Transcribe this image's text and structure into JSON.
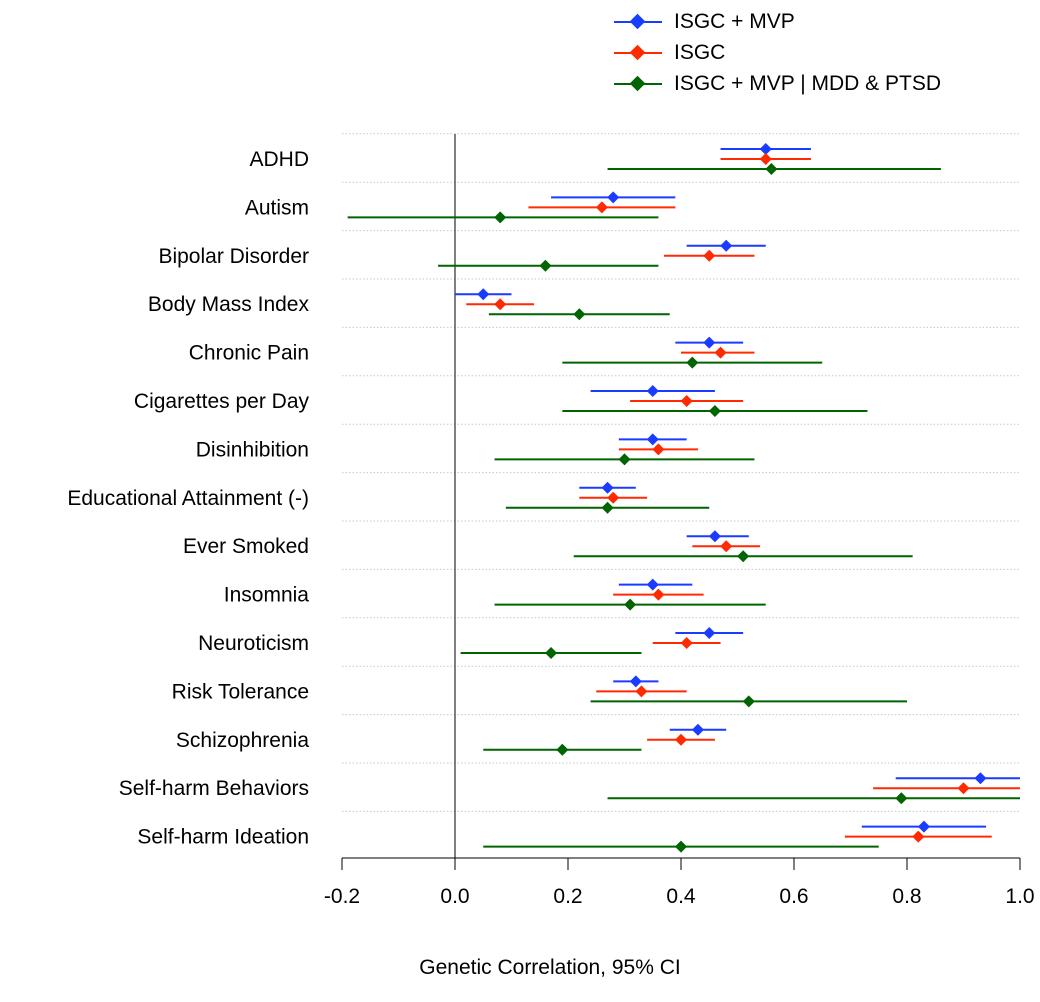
{
  "chart_data": {
    "type": "forest",
    "xlabel": "Genetic Correlation, 95% CI",
    "xlim": [
      -0.2,
      1.0
    ],
    "x_ticks": [
      "-0.2",
      "0.0",
      "0.2",
      "0.4",
      "0.6",
      "0.8",
      "1.0"
    ],
    "x_tick_values": [
      -0.2,
      0.0,
      0.2,
      0.4,
      0.6,
      0.8,
      1.0
    ],
    "reference_line": 0,
    "grid": "dotted horizontal separators",
    "legend_position": "top-right",
    "categories": [
      "ADHD",
      "Autism",
      "Bipolar Disorder",
      "Body Mass Index",
      "Chronic Pain",
      "Cigarettes per Day",
      "Disinhibition",
      "Educational Attainment (-)",
      "Ever Smoked",
      "Insomnia",
      "Neuroticism",
      "Risk Tolerance",
      "Schizophrenia",
      "Self-harm Behaviors",
      "Self-harm Ideation"
    ],
    "series": [
      {
        "name": "ISGC + MVP",
        "color": "#1a3cff",
        "estimate": [
          0.55,
          0.28,
          0.48,
          0.05,
          0.45,
          0.35,
          0.35,
          0.27,
          0.46,
          0.35,
          0.45,
          0.32,
          0.43,
          0.93,
          0.83
        ],
        "lower": [
          0.47,
          0.17,
          0.41,
          0.0,
          0.39,
          0.24,
          0.29,
          0.22,
          0.41,
          0.29,
          0.39,
          0.28,
          0.38,
          0.78,
          0.72
        ],
        "upper": [
          0.63,
          0.39,
          0.55,
          0.1,
          0.51,
          0.46,
          0.41,
          0.32,
          0.52,
          0.42,
          0.51,
          0.36,
          0.48,
          1.0,
          0.94
        ]
      },
      {
        "name": "ISGC",
        "color": "#ff2a00",
        "estimate": [
          0.55,
          0.26,
          0.45,
          0.08,
          0.47,
          0.41,
          0.36,
          0.28,
          0.48,
          0.36,
          0.41,
          0.33,
          0.4,
          0.9,
          0.82
        ],
        "lower": [
          0.47,
          0.13,
          0.37,
          0.02,
          0.4,
          0.31,
          0.29,
          0.22,
          0.42,
          0.28,
          0.35,
          0.25,
          0.34,
          0.74,
          0.69
        ],
        "upper": [
          0.63,
          0.39,
          0.53,
          0.14,
          0.53,
          0.51,
          0.43,
          0.34,
          0.54,
          0.44,
          0.47,
          0.41,
          0.46,
          1.0,
          0.95
        ]
      },
      {
        "name": "ISGC + MVP | MDD & PTSD",
        "color": "#006400",
        "estimate": [
          0.56,
          0.08,
          0.16,
          0.22,
          0.42,
          0.46,
          0.3,
          0.27,
          0.51,
          0.31,
          0.17,
          0.52,
          0.19,
          0.79,
          0.4
        ],
        "lower": [
          0.27,
          -0.19,
          -0.03,
          0.06,
          0.19,
          0.19,
          0.07,
          0.09,
          0.21,
          0.07,
          0.01,
          0.24,
          0.05,
          0.27,
          0.05
        ],
        "upper": [
          0.86,
          0.36,
          0.36,
          0.38,
          0.65,
          0.73,
          0.53,
          0.45,
          0.81,
          0.55,
          0.33,
          0.8,
          0.33,
          1.0,
          0.75
        ]
      }
    ]
  }
}
